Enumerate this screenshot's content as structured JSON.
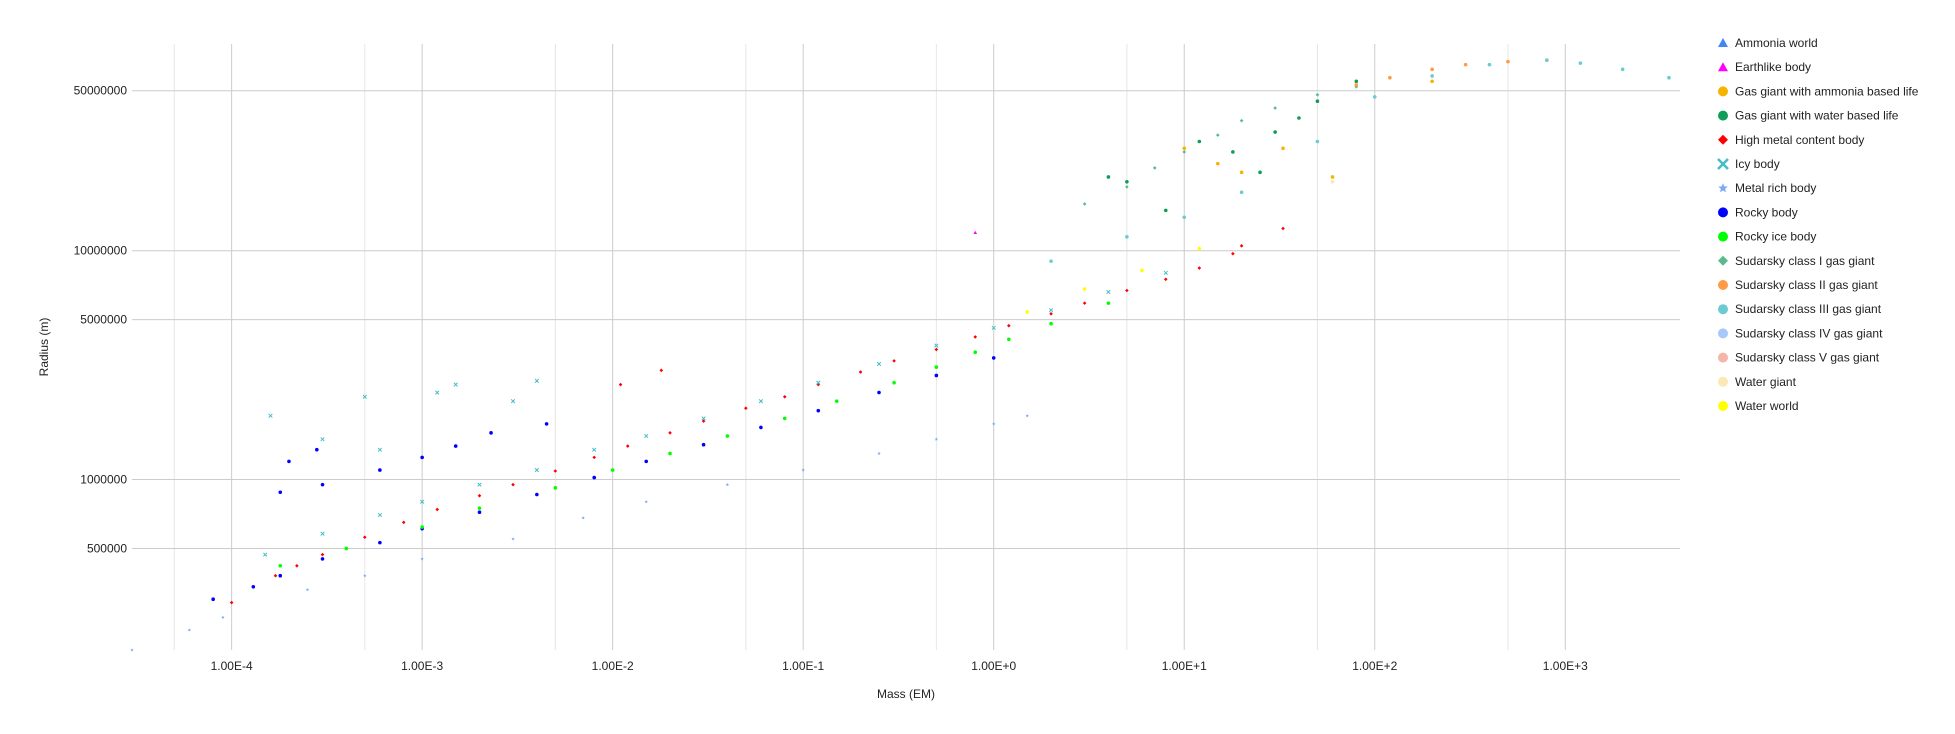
{
  "chart_data": {
    "type": "scatter",
    "xlabel": "Mass (EM)",
    "ylabel": "Radius (m)",
    "x_scale": "log",
    "y_scale": "log",
    "xlim": [
      3e-05,
      4000
    ],
    "ylim": [
      180000,
      80000000
    ],
    "grid": true,
    "legend_position": "right",
    "x_ticks": [
      {
        "value": 0.0001,
        "label": "1.00E-4"
      },
      {
        "value": 0.001,
        "label": "1.00E-3"
      },
      {
        "value": 0.01,
        "label": "1.00E-2"
      },
      {
        "value": 0.1,
        "label": "1.00E-1"
      },
      {
        "value": 1,
        "label": "1.00E+0"
      },
      {
        "value": 10,
        "label": "1.00E+1"
      },
      {
        "value": 100,
        "label": "1.00E+2"
      },
      {
        "value": 1000,
        "label": "1.00E+3"
      }
    ],
    "y_ticks": [
      {
        "value": 500000,
        "label": "500000"
      },
      {
        "value": 1000000,
        "label": "1000000"
      },
      {
        "value": 5000000,
        "label": "5000000"
      },
      {
        "value": 10000000,
        "label": "10000000"
      },
      {
        "value": 50000000,
        "label": "50000000"
      }
    ],
    "series": [
      {
        "name": "Ammonia world",
        "color": "#4285f4",
        "marker": "triangle",
        "points": []
      },
      {
        "name": "Earthlike body",
        "color": "#ff00ff",
        "marker": "triangle",
        "points": [
          [
            0.8,
            12000000
          ]
        ]
      },
      {
        "name": "Gas giant with ammonia based life",
        "color": "#f4b400",
        "marker": "circle",
        "points": [
          [
            10,
            28000000
          ],
          [
            15,
            24000000
          ],
          [
            20,
            22000000
          ],
          [
            33,
            28000000
          ],
          [
            60,
            21000000
          ],
          [
            200,
            55000000
          ]
        ]
      },
      {
        "name": "Gas giant with water based life",
        "color": "#0f9d58",
        "marker": "circle",
        "points": [
          [
            4,
            21000000
          ],
          [
            5,
            20000000
          ],
          [
            8,
            15000000
          ],
          [
            12,
            30000000
          ],
          [
            18,
            27000000
          ],
          [
            25,
            22000000
          ],
          [
            30,
            33000000
          ],
          [
            40,
            38000000
          ],
          [
            50,
            45000000
          ],
          [
            80,
            55000000
          ]
        ]
      },
      {
        "name": "High metal content body",
        "color": "#ff0000",
        "marker": "diamond",
        "points": [
          [
            0.0001,
            290000
          ],
          [
            0.011,
            2600000
          ],
          [
            0.018,
            3000000
          ],
          [
            0.00017,
            380000
          ],
          [
            0.00022,
            420000
          ],
          [
            0.0003,
            470000
          ],
          [
            0.0005,
            560000
          ],
          [
            0.0008,
            650000
          ],
          [
            0.0012,
            740000
          ],
          [
            0.002,
            850000
          ],
          [
            0.003,
            950000
          ],
          [
            0.005,
            1090000
          ],
          [
            0.008,
            1250000
          ],
          [
            0.012,
            1400000
          ],
          [
            0.02,
            1600000
          ],
          [
            0.03,
            1800000
          ],
          [
            0.05,
            2050000
          ],
          [
            0.08,
            2300000
          ],
          [
            0.12,
            2600000
          ],
          [
            0.2,
            2950000
          ],
          [
            0.3,
            3300000
          ],
          [
            0.5,
            3700000
          ],
          [
            0.8,
            4200000
          ],
          [
            1.2,
            4700000
          ],
          [
            2,
            5300000
          ],
          [
            3,
            5900000
          ],
          [
            5,
            6700000
          ],
          [
            8,
            7500000
          ],
          [
            12,
            8400000
          ],
          [
            18,
            9700000
          ],
          [
            20,
            10500000
          ],
          [
            33,
            12500000
          ]
        ]
      },
      {
        "name": "Icy body",
        "color": "#46bdc6",
        "marker": "cross",
        "points": [
          [
            0.00015,
            470000
          ],
          [
            0.0003,
            580000
          ],
          [
            0.0006,
            700000
          ],
          [
            0.001,
            800000
          ],
          [
            0.002,
            950000
          ],
          [
            0.004,
            1100000
          ],
          [
            0.008,
            1350000
          ],
          [
            0.015,
            1550000
          ],
          [
            0.03,
            1850000
          ],
          [
            0.06,
            2200000
          ],
          [
            0.12,
            2650000
          ],
          [
            0.25,
            3200000
          ],
          [
            0.5,
            3850000
          ],
          [
            1,
            4600000
          ],
          [
            2,
            5500000
          ],
          [
            4,
            6600000
          ],
          [
            8,
            8000000
          ],
          [
            0.00016,
            1900000
          ],
          [
            0.0005,
            2300000
          ],
          [
            0.0012,
            2400000
          ],
          [
            0.004,
            2700000
          ],
          [
            0.0015,
            2600000
          ],
          [
            0.003,
            2200000
          ],
          [
            0.0003,
            1500000
          ],
          [
            0.0006,
            1350000
          ]
        ]
      },
      {
        "name": "Metal rich body",
        "color": "#7baaf7",
        "marker": "star",
        "points": [
          [
            3e-05,
            180000
          ],
          [
            6e-05,
            220000
          ],
          [
            9e-05,
            250000
          ],
          [
            0.00025,
            330000
          ],
          [
            0.0005,
            380000
          ],
          [
            0.001,
            450000
          ],
          [
            0.003,
            550000
          ],
          [
            0.007,
            680000
          ],
          [
            0.015,
            800000
          ],
          [
            0.04,
            950000
          ],
          [
            0.1,
            1100000
          ],
          [
            0.25,
            1300000
          ],
          [
            0.5,
            1500000
          ],
          [
            1,
            1750000
          ],
          [
            1.5,
            1900000
          ]
        ]
      },
      {
        "name": "Rocky body",
        "color": "#0000ff",
        "marker": "circle",
        "points": [
          [
            8e-05,
            300000
          ],
          [
            0.00013,
            340000
          ],
          [
            0.00018,
            380000
          ],
          [
            0.0003,
            450000
          ],
          [
            0.0006,
            530000
          ],
          [
            0.001,
            610000
          ],
          [
            0.002,
            720000
          ],
          [
            0.004,
            860000
          ],
          [
            0.008,
            1020000
          ],
          [
            0.015,
            1200000
          ],
          [
            0.03,
            1420000
          ],
          [
            0.06,
            1690000
          ],
          [
            0.12,
            2000000
          ],
          [
            0.25,
            2400000
          ],
          [
            0.5,
            2850000
          ],
          [
            1,
            3400000
          ],
          [
            0.00018,
            880000
          ],
          [
            0.0003,
            950000
          ],
          [
            0.0006,
            1100000
          ],
          [
            0.001,
            1250000
          ],
          [
            0.0015,
            1400000
          ],
          [
            0.0023,
            1600000
          ],
          [
            0.0045,
            1750000
          ],
          [
            0.0002,
            1200000
          ],
          [
            0.00028,
            1350000
          ]
        ]
      },
      {
        "name": "Rocky ice body",
        "color": "#00ff00",
        "marker": "circle",
        "points": [
          [
            0.00018,
            420000
          ],
          [
            0.0004,
            500000
          ],
          [
            0.001,
            620000
          ],
          [
            0.002,
            750000
          ],
          [
            0.005,
            920000
          ],
          [
            0.01,
            1100000
          ],
          [
            0.02,
            1300000
          ],
          [
            0.04,
            1550000
          ],
          [
            0.08,
            1850000
          ],
          [
            0.15,
            2200000
          ],
          [
            0.3,
            2650000
          ],
          [
            0.5,
            3100000
          ],
          [
            0.8,
            3600000
          ],
          [
            1.2,
            4100000
          ],
          [
            2,
            4800000
          ],
          [
            4,
            5900000
          ]
        ]
      },
      {
        "name": "Sudarsky class I gas giant",
        "color": "#57bb8a",
        "marker": "diamond",
        "points": [
          [
            3,
            16000000
          ],
          [
            5,
            19000000
          ],
          [
            7,
            23000000
          ],
          [
            10,
            27000000
          ],
          [
            15,
            32000000
          ],
          [
            20,
            37000000
          ],
          [
            30,
            42000000
          ],
          [
            50,
            48000000
          ],
          [
            80,
            52000000
          ],
          [
            120,
            57000000
          ],
          [
            200,
            62000000
          ]
        ]
      },
      {
        "name": "Sudarsky class II gas giant",
        "color": "#ff9b45",
        "marker": "circle",
        "points": [
          [
            80,
            53000000
          ],
          [
            120,
            57000000
          ],
          [
            200,
            62000000
          ],
          [
            300,
            65000000
          ],
          [
            500,
            67000000
          ],
          [
            800,
            68000000
          ]
        ]
      },
      {
        "name": "Sudarsky class III gas giant",
        "color": "#6bcbd0",
        "marker": "circle",
        "points": [
          [
            2,
            9000000
          ],
          [
            5,
            11500000
          ],
          [
            10,
            14000000
          ],
          [
            20,
            18000000
          ],
          [
            50,
            30000000
          ],
          [
            100,
            47000000
          ],
          [
            200,
            58000000
          ],
          [
            400,
            65000000
          ],
          [
            800,
            68000000
          ],
          [
            1200,
            66000000
          ],
          [
            2000,
            62000000
          ],
          [
            3500,
            57000000
          ]
        ]
      },
      {
        "name": "Sudarsky class IV gas giant",
        "color": "#a8c7fa",
        "marker": "circle",
        "points": []
      },
      {
        "name": "Sudarsky class V gas giant",
        "color": "#f4b6a6",
        "marker": "circle",
        "points": []
      },
      {
        "name": "Water giant",
        "color": "#fce8b2",
        "marker": "circle",
        "points": [
          [
            60,
            20000000
          ]
        ]
      },
      {
        "name": "Water world",
        "color": "#ffff00",
        "marker": "circle",
        "points": [
          [
            1.5,
            5400000
          ],
          [
            3,
            6800000
          ],
          [
            6,
            8200000
          ],
          [
            12,
            10200000
          ]
        ]
      }
    ]
  }
}
